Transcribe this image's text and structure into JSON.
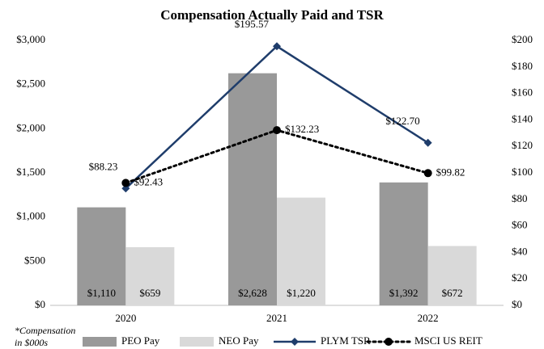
{
  "chart_data": {
    "type": "bar",
    "title": "Compensation Actually Paid and TSR",
    "annotation": [
      "*Compensation",
      "in $000s"
    ],
    "categories": [
      "2020",
      "2021",
      "2022"
    ],
    "series": [
      {
        "name": "PEO Pay",
        "type": "bar",
        "color": "#999999",
        "values": [
          1110,
          2628,
          1392
        ],
        "value_labels": [
          "$1,110",
          "$2,628",
          "$1,392"
        ]
      },
      {
        "name": "NEO Pay",
        "type": "bar",
        "color": "#d9d9d9",
        "values": [
          659,
          1220,
          672
        ],
        "value_labels": [
          "$659",
          "$1,220",
          "$672"
        ]
      },
      {
        "name": "PLYM TSR",
        "type": "line",
        "axis": "y2",
        "color": "#1f3d6b",
        "marker": "diamond",
        "values": [
          88.23,
          195.57,
          122.7
        ],
        "value_labels": [
          "$88.23",
          "$195.57",
          "$122.70"
        ]
      },
      {
        "name": "MSCI US REIT",
        "type": "line",
        "axis": "y2",
        "color": "#000000",
        "marker": "circle",
        "dashed": true,
        "values": [
          92.43,
          132.23,
          99.82
        ],
        "value_labels": [
          "$92.43",
          "$132.23",
          "$99.82"
        ]
      }
    ],
    "ylim": [
      0,
      3000
    ],
    "yticks": [
      {
        "value": 0,
        "label": "$0"
      },
      {
        "value": 500,
        "label": "$500"
      },
      {
        "value": 1000,
        "label": "$1,000"
      },
      {
        "value": 1500,
        "label": "$1,500"
      },
      {
        "value": 2000,
        "label": "$2,000"
      },
      {
        "value": 2500,
        "label": "$2,500"
      },
      {
        "value": 3000,
        "label": "$3,000"
      }
    ],
    "y2lim": [
      0,
      200
    ],
    "y2ticks": [
      {
        "value": 0,
        "label": "$0"
      },
      {
        "value": 20,
        "label": "$20"
      },
      {
        "value": 40,
        "label": "$40"
      },
      {
        "value": 60,
        "label": "$60"
      },
      {
        "value": 80,
        "label": "$80"
      },
      {
        "value": 100,
        "label": "$100"
      },
      {
        "value": 120,
        "label": "$120"
      },
      {
        "value": 140,
        "label": "$140"
      },
      {
        "value": 160,
        "label": "$160"
      },
      {
        "value": 180,
        "label": "$180"
      },
      {
        "value": 200,
        "label": "$200"
      }
    ],
    "grid": false,
    "legend": "bottom"
  }
}
